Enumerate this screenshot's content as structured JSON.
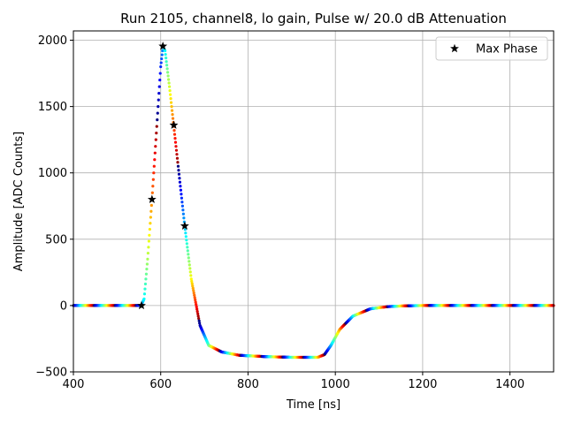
{
  "chart_data": {
    "type": "scatter",
    "title": "Run 2105, channel8, lo gain, Pulse w/ 20.0 dB Attenuation",
    "xlabel": "Time [ns]",
    "ylabel": "Amplitude [ADC Counts]",
    "xlim": [
      400,
      1500
    ],
    "ylim": [
      -500,
      2070
    ],
    "xticks": [
      400,
      600,
      800,
      1000,
      1200,
      1400
    ],
    "yticks": [
      -500,
      0,
      500,
      1000,
      1500,
      2000
    ],
    "xtick_labels": [
      "400",
      "600",
      "800",
      "1000",
      "1200",
      "1400"
    ],
    "ytick_labels": [
      "−500",
      "0",
      "500",
      "1000",
      "1500",
      "2000"
    ],
    "grid": true,
    "legend": {
      "position": "upper-right",
      "entries": [
        {
          "label": "Max Phase",
          "marker": "star",
          "color": "#000000"
        }
      ]
    },
    "colormap": "jet",
    "phase_count": 8,
    "pulse_series": {
      "name": "pulse samples (coloured by phase)",
      "x": [
        400,
        520,
        555,
        562,
        570,
        580,
        590,
        600,
        605,
        610,
        620,
        630,
        645,
        655,
        670,
        690,
        710,
        740,
        780,
        840,
        900,
        960,
        975,
        990,
        1010,
        1040,
        1080,
        1120,
        1160,
        1200,
        1500
      ],
      "y": [
        0,
        0,
        0,
        50,
        350,
        800,
        1300,
        1800,
        1950,
        1920,
        1650,
        1350,
        900,
        600,
        200,
        -150,
        -300,
        -350,
        -375,
        -385,
        -390,
        -390,
        -370,
        -300,
        -180,
        -80,
        -25,
        -8,
        -2,
        0,
        0
      ]
    },
    "max_phase_series": {
      "name": "Max Phase",
      "marker": "star",
      "points": [
        {
          "x": 556,
          "y": 0
        },
        {
          "x": 580,
          "y": 800
        },
        {
          "x": 605,
          "y": 1955
        },
        {
          "x": 630,
          "y": 1360
        },
        {
          "x": 655,
          "y": 600
        }
      ]
    }
  }
}
